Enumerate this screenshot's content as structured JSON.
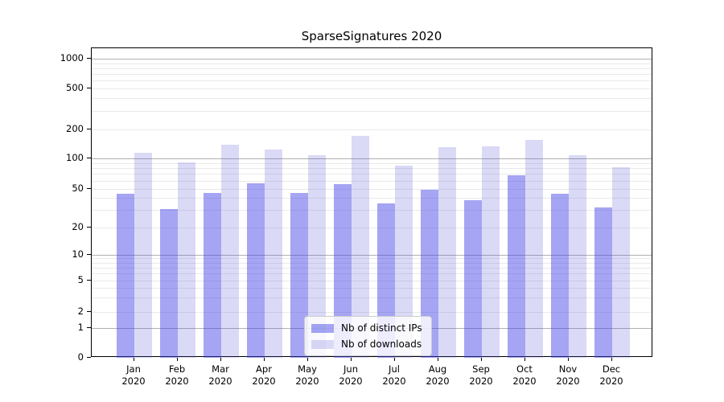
{
  "chart_data": {
    "type": "bar",
    "title": "SparseSignatures 2020",
    "categories": [
      "Jan",
      "Feb",
      "Mar",
      "Apr",
      "May",
      "Jun",
      "Jul",
      "Aug",
      "Sep",
      "Oct",
      "Nov",
      "Dec"
    ],
    "x_tick_year": "2020",
    "series": [
      {
        "name": "Nb of distinct IPs",
        "color": "rgba(64,64,230,0.47)",
        "values": [
          44,
          31,
          45,
          56,
          45,
          55,
          35,
          49,
          38,
          68,
          44,
          32
        ]
      },
      {
        "name": "Nb of downloads",
        "color": "rgba(88,88,212,0.22)",
        "values": [
          114,
          92,
          139,
          124,
          108,
          172,
          85,
          130,
          134,
          155,
          107,
          81
        ]
      }
    ],
    "y_ticks": [
      0,
      1,
      2,
      5,
      10,
      20,
      50,
      100,
      200,
      500,
      1000
    ],
    "y_scale": "symlog",
    "ylim": [
      0,
      1300
    ],
    "grid": true,
    "legend_position": "lower center"
  },
  "colors": {
    "major_grid": "#b0b0b0",
    "minor_grid": "#e9e9e9",
    "axis": "#000000",
    "background": "#ffffff"
  }
}
